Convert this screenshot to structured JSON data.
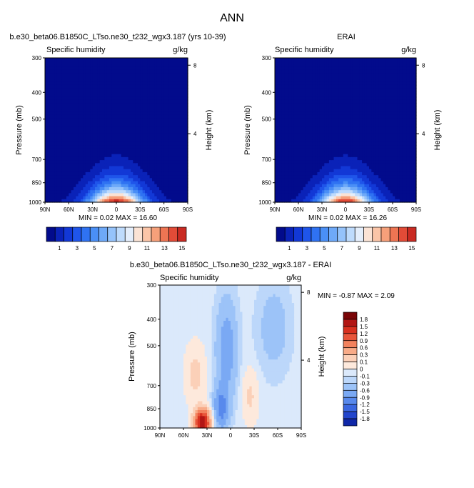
{
  "figure_title": "ANN",
  "chart_data": [
    {
      "type": "heatmap",
      "title": "b.e30_beta06.B1850C_LTso.ne30_t232_wgx3.187 (yrs 10-39)",
      "subtitle_left": "Specific humidity",
      "subtitle_right": "g/kg",
      "ylabel": "Pressure (mb)",
      "ylabel_right": "Height (km)",
      "xticks": [
        "90N",
        "60N",
        "30N",
        "0",
        "30S",
        "60S",
        "90S"
      ],
      "yticks": [
        "300",
        "400",
        "500",
        "700",
        "850",
        "1000"
      ],
      "yticks_right": [
        "8",
        "4"
      ],
      "min_max_label": "MIN =  0.02  MAX =  16.60",
      "min": 0.02,
      "max": 16.6,
      "peak_latitude": 0,
      "levels": [
        1,
        2,
        3,
        4,
        5,
        6,
        7,
        8,
        9,
        10,
        11,
        12,
        13,
        14,
        15
      ]
    },
    {
      "type": "heatmap",
      "title": "ERAI",
      "subtitle_left": "Specific humidity",
      "subtitle_right": "g/kg",
      "ylabel": "Pressure (mb)",
      "ylabel_right": "Height (km)",
      "xticks": [
        "90N",
        "60N",
        "30N",
        "0",
        "30S",
        "60S",
        "90S"
      ],
      "yticks": [
        "300",
        "400",
        "500",
        "700",
        "850",
        "1000"
      ],
      "yticks_right": [
        "8",
        "4"
      ],
      "min_max_label": "MIN =  0.02  MAX =  16.26",
      "min": 0.02,
      "max": 16.26,
      "peak_latitude": 0,
      "levels": [
        1,
        2,
        3,
        4,
        5,
        6,
        7,
        8,
        9,
        10,
        11,
        12,
        13,
        14,
        15
      ]
    },
    {
      "type": "heatmap",
      "title": "b.e30_beta06.B1850C_LTso.ne30_t232_wgx3.187 - ERAI",
      "subtitle_left": "Specific humidity",
      "subtitle_right": "g/kg",
      "ylabel": "Pressure (mb)",
      "ylabel_right": "Height (km)",
      "xticks": [
        "90N",
        "60N",
        "30N",
        "0",
        "30S",
        "60S",
        "90S"
      ],
      "yticks": [
        "300",
        "400",
        "500",
        "700",
        "850",
        "1000"
      ],
      "yticks_right": [
        "8",
        "4"
      ],
      "min_max_label": "MIN = -0.87  MAX =   2.09",
      "min": -0.87,
      "max": 2.09,
      "levels": [
        -1.8,
        -1.5,
        -1.2,
        -0.9,
        -0.6,
        -0.3,
        -0.1,
        0,
        0.1,
        0.3,
        0.6,
        0.9,
        1.2,
        1.5,
        1.8
      ]
    }
  ],
  "colorbar_abs": {
    "labels": [
      "1",
      "3",
      "5",
      "7",
      "9",
      "11",
      "13",
      "15"
    ],
    "colors": [
      "#020b8c",
      "#0a22b8",
      "#1238d6",
      "#1f55ea",
      "#2f72f2",
      "#4a8ff6",
      "#6ea9f8",
      "#95c3fb",
      "#bedbfc",
      "#e4eefb",
      "#fbe3d5",
      "#fbc5a8",
      "#f6a07a",
      "#ee7553",
      "#e24b37",
      "#c92a22",
      "#9a1010",
      "#7a0507"
    ]
  },
  "colorbar_diff": {
    "labels": [
      "1.8",
      "1.5",
      "1.2",
      "0.9",
      "0.6",
      "0.3",
      "0.1",
      "0",
      "-0.1",
      "-0.3",
      "-0.6",
      "-0.9",
      "-1.2",
      "-1.5",
      "-1.8"
    ],
    "colors": [
      "#7a0507",
      "#b21614",
      "#d8301f",
      "#e8553a",
      "#f2825e",
      "#f8ab88",
      "#fbd0b8",
      "#fde9dc",
      "#dbe9fb",
      "#bcd7fa",
      "#9cc3f8",
      "#7aa9f4",
      "#5889ec",
      "#3a67e0",
      "#2245cc",
      "#1028a8",
      "#02097e"
    ]
  }
}
